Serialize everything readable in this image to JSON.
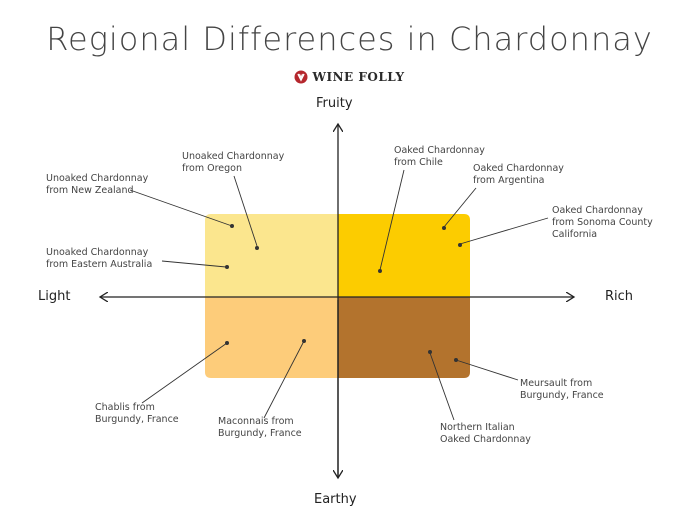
{
  "title": "Regional Differences in Chardonnay",
  "brand": "WINE FOLLY",
  "axes": {
    "top": "Fruity",
    "bottom": "Earthy",
    "left": "Light",
    "right": "Rich"
  },
  "quadrant_colors": {
    "fruity_light": "#fbe68e",
    "fruity_rich": "#fccc00",
    "earthy_light": "#fdcc7a",
    "earthy_rich": "#b3732d"
  },
  "wines": [
    {
      "line1": "Unoaked Chardonnay",
      "line2": "from New Zealand"
    },
    {
      "line1": "Unoaked Chardonnay",
      "line2": "from Oregon"
    },
    {
      "line1": "Unoaked Chardonnay",
      "line2": "from Eastern Australia"
    },
    {
      "line1": "Oaked Chardonnay",
      "line2": "from Chile"
    },
    {
      "line1": "Oaked Chardonnay",
      "line2": "from Argentina"
    },
    {
      "line1": "Oaked Chardonnay",
      "line2": "from Sonoma County",
      "line3": "California"
    },
    {
      "line1": "Chablis from",
      "line2": "Burgundy, France"
    },
    {
      "line1": "Maconnais from",
      "line2": "Burgundy, France"
    },
    {
      "line1": "Northern Italian",
      "line2": "Oaked Chardonnay"
    },
    {
      "line1": "Meursault from",
      "line2": "Burgundy, France"
    }
  ]
}
